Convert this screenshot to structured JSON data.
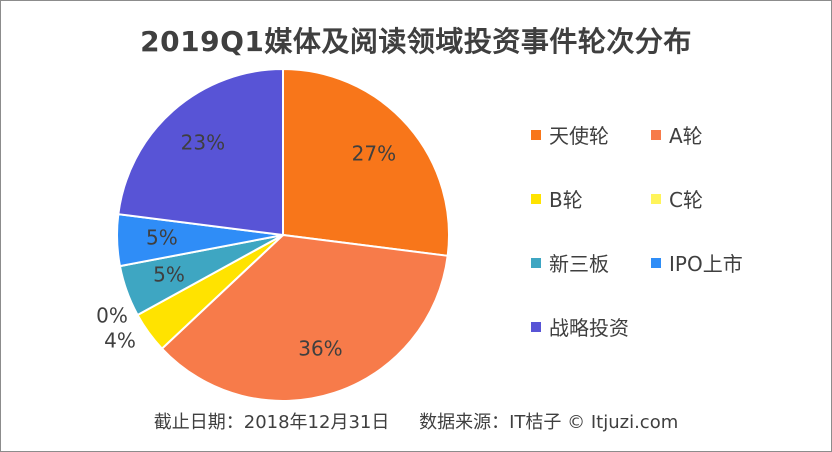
{
  "chart_data": {
    "type": "pie",
    "title": "2019Q1媒体及阅读领域投资事件轮次分布",
    "subtitle": "",
    "slices": [
      {
        "name": "天使轮",
        "value": 27,
        "label": "27%",
        "color": "#f8761a"
      },
      {
        "name": "A轮",
        "value": 36,
        "label": "36%",
        "color": "#f77b4a"
      },
      {
        "name": "B轮",
        "value": 4,
        "label": "4%",
        "color": "#ffe300"
      },
      {
        "name": "C轮",
        "value": 0,
        "label": "0%",
        "color": "#fff45a"
      },
      {
        "name": "新三板",
        "value": 5,
        "label": "5%",
        "color": "#3ea6c2"
      },
      {
        "name": "IPO上市",
        "value": 5,
        "label": "5%",
        "color": "#2f8df7"
      },
      {
        "name": "战略投资",
        "value": 23,
        "label": "23%",
        "color": "#5854d6"
      }
    ],
    "legend_position": "right"
  },
  "footer": {
    "date_text": "截止日期：2018年12月31日",
    "source_text": "数据来源：IT桔子 © Itjuzi.com"
  }
}
